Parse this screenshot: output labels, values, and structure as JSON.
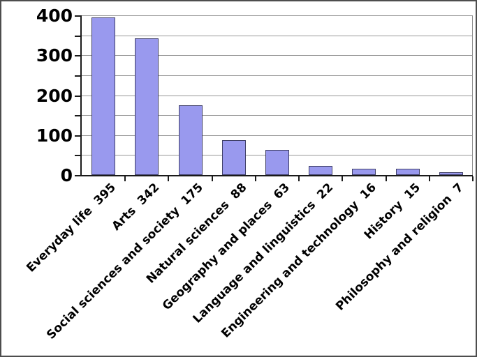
{
  "chart_data": {
    "type": "bar",
    "title": "",
    "xlabel": "",
    "ylabel": "",
    "categories": [
      "Everyday life",
      "Arts",
      "Social sciences and society",
      "Natural sciences",
      "Geography and places",
      "Language and linguistics",
      "Engineering and technology",
      "History",
      "Philosophy and religion"
    ],
    "values": [
      395,
      342,
      175,
      88,
      63,
      22,
      16,
      15,
      7
    ],
    "xtick_labels": [
      "Everyday life  395",
      "Arts  342",
      "Social sciences and society  175",
      "Natural sciences  88",
      "Geography and places  63",
      "Language and linguistics  22",
      "Engineering and technology  16",
      "History  15",
      "Philosophy and religion  7"
    ],
    "ylim": [
      0,
      400
    ],
    "ytick_major_step": 100,
    "ytick_minor_step": 50,
    "ytick_labels": [
      "0",
      "100",
      "200",
      "300",
      "400"
    ],
    "grid": "horizontal every 50",
    "legend": null,
    "colors": {
      "bar_fill": "#9999ee",
      "bar_border": "#404068",
      "gridline": "#969696",
      "axis": "#1a1a1a",
      "label_text": "#000000",
      "frame": "#4d4d4d",
      "background": "#ffffff"
    }
  }
}
